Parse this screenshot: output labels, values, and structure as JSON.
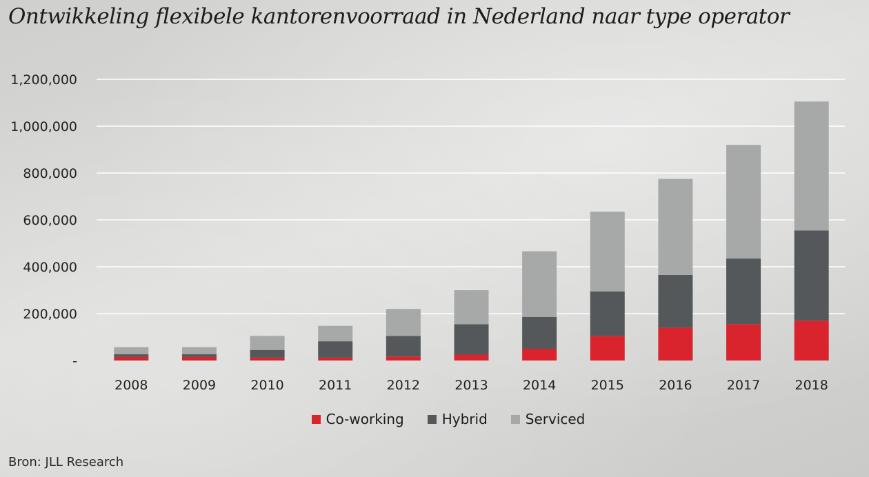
{
  "chart_data": {
    "type": "bar",
    "stacked": true,
    "title": "Ontwikkeling flexibele kantorenvoorraad in Nederland naar type operator",
    "categories": [
      "2008",
      "2009",
      "2010",
      "2011",
      "2012",
      "2013",
      "2014",
      "2015",
      "2016",
      "2017",
      "2018"
    ],
    "series": [
      {
        "name": "Co-working",
        "color": "#d9232d",
        "values": [
          15000,
          15000,
          12000,
          12000,
          17000,
          25000,
          50000,
          105000,
          140000,
          155000,
          170000
        ]
      },
      {
        "name": "Hybrid",
        "color": "#55585a",
        "values": [
          12000,
          12000,
          33000,
          70000,
          88000,
          130000,
          136000,
          190000,
          225000,
          280000,
          385000
        ]
      },
      {
        "name": "Serviced",
        "color": "#a7a9a8",
        "values": [
          30000,
          30000,
          60000,
          66000,
          115000,
          145000,
          280000,
          340000,
          410000,
          485000,
          550000
        ]
      }
    ],
    "ylim": [
      0,
      1200000
    ],
    "yticks": [
      "-",
      "200,000",
      "400,000",
      "600,000",
      "800,000",
      "1,000,000",
      "1,200,000"
    ],
    "grid": true,
    "legend_position": "bottom"
  },
  "source": "Bron: JLL Research"
}
